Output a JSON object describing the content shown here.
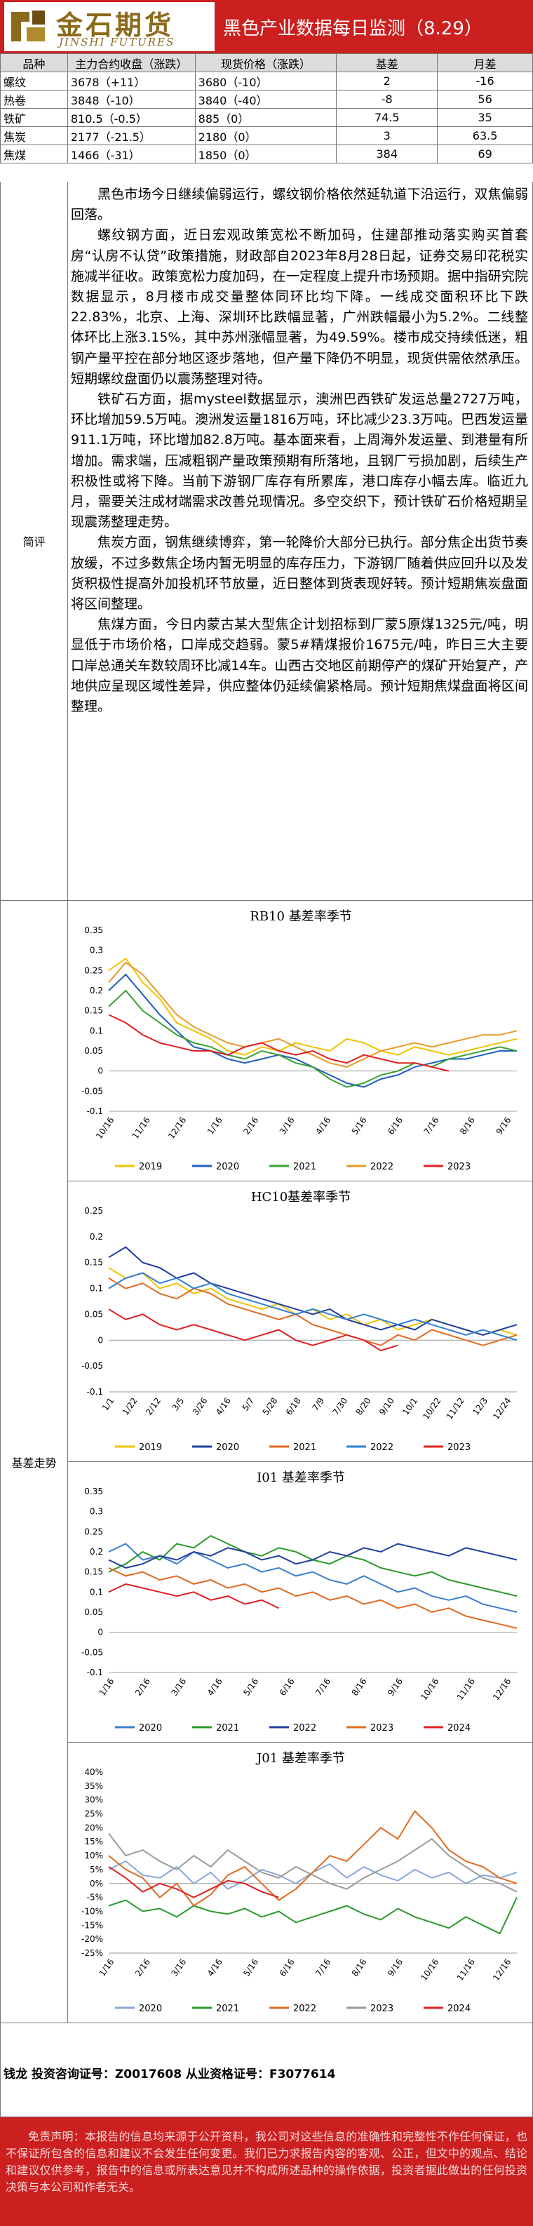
{
  "header": {
    "logo_cn": "金石期货",
    "logo_en": "JINSHI FUTURES",
    "title": "黑色产业数据每日监测（8.29）"
  },
  "summary": {
    "headers": [
      "品种",
      "主力合约收盘（涨跌）",
      "现货价格（涨跌）",
      "基差",
      "月差"
    ],
    "rows": [
      [
        "螺纹",
        "3678（+11）",
        "3680（-10）",
        "2",
        "-16"
      ],
      [
        "热卷",
        "3848（-10）",
        "3840（-40）",
        "-8",
        "56"
      ],
      [
        "铁矿",
        "810.5（-0.5）",
        "885（0）",
        "74.5",
        "35"
      ],
      [
        "焦炭",
        "2177（-21.5）",
        "2180（0）",
        "3",
        "63.5"
      ],
      [
        "焦煤",
        "1466（-31）",
        "1850（0）",
        "384",
        "69"
      ]
    ]
  },
  "commentary": {
    "label": "简评",
    "paragraphs": [
      "黑色市场今日继续偏弱运行，螺纹钢价格依然延轨道下沿运行，双焦偏弱回落。",
      "螺纹钢方面，近日宏观政策宽松不断加码，住建部推动落实购买首套房“认房不认贷”政策措施，财政部自2023年8月28日起，证券交易印花税实施减半征收。政策宽松力度加码，在一定程度上提升市场预期。据中指研究院数据显示，8月楼市成交量整体同环比均下降。一线成交面积环比下跌22.83%，北京、上海、深圳环比跌幅显著，广州跌幅最小为5.2%。二线整体环比上涨3.15%，其中苏州涨幅显著，为49.59%。楼市成交持续低迷，粗钢产量平控在部分地区逐步落地，但产量下降仍不明显，现货供需依然承压。短期螺纹盘面仍以震荡整理对待。",
      "铁矿石方面，据mysteel数据显示，澳洲巴西铁矿发运总量2727万吨，环比增加59.5万吨。澳洲发运量1816万吨，环比减少23.3万吨。巴西发运量911.1万吨，环比增加82.8万吨。基本面来看，上周海外发运量、到港量有所增加。需求端，压减粗钢产量政策预期有所落地，且钢厂亏损加剧，后续生产积极性或将下降。当前下游钢厂库存有所累库，港口库存小幅去库。临近九月，需要关注成材端需求改善兑现情况。多空交织下，预计铁矿石价格短期呈现震荡整理走势。",
      "焦炭方面，钢焦继续博弈，第一轮降价大部分已执行。部分焦企出货节奏放缓，不过多数焦企场内暂无明显的库存压力，下游钢厂随着供应回升以及发货积极性提高外加投机环节放量，近日整体到货表现好转。预计短期焦炭盘面将区间整理。",
      "焦煤方面，今日内蒙古某大型焦企计划招标到厂蒙5原煤1325元/吨，明显低于市场价格，口岸成交趋弱。蒙5#精煤报价1675元/吨，昨日三大主要口岸总通关车数较周环比减14车。山西古交地区前期停产的煤矿开始复产，产地供应呈现区域性差异，供应整体仍延续偏紧格局。预计短期焦煤盘面将区间整理。"
    ]
  },
  "basis": {
    "label": "基差走势"
  },
  "chart_data": [
    {
      "type": "line",
      "title": "RB10 基差率季节",
      "x_ticks": [
        "10/16",
        "11/16",
        "12/16",
        "1/16",
        "2/16",
        "3/16",
        "4/16",
        "5/16",
        "6/16",
        "7/16",
        "8/16",
        "9/16"
      ],
      "ylim": [
        -0.1,
        0.35
      ],
      "y_ticks": [
        "0.35",
        "0.3",
        "0.25",
        "0.2",
        "0.15",
        "0.1",
        "0.05",
        "0",
        "-0.05",
        "-0.1"
      ],
      "series": [
        {
          "name": "2019",
          "color": "#f2c200",
          "values": [
            0.25,
            0.28,
            0.22,
            0.18,
            0.12,
            0.1,
            0.08,
            0.05,
            0.04,
            0.06,
            0.05,
            0.07,
            0.06,
            0.05,
            0.08,
            0.07,
            0.05,
            0.04,
            0.06,
            0.05,
            0.04,
            0.05,
            0.06,
            0.07,
            0.08
          ]
        },
        {
          "name": "2020",
          "color": "#1f5fbf",
          "values": [
            0.2,
            0.24,
            0.19,
            0.14,
            0.1,
            0.06,
            0.05,
            0.03,
            0.02,
            0.03,
            0.04,
            0.03,
            0.01,
            -0.01,
            -0.03,
            -0.04,
            -0.02,
            -0.01,
            0.01,
            0.02,
            0.03,
            0.03,
            0.04,
            0.05,
            0.05
          ]
        },
        {
          "name": "2021",
          "color": "#3aa034",
          "values": [
            0.16,
            0.2,
            0.15,
            0.12,
            0.09,
            0.07,
            0.06,
            0.04,
            0.03,
            0.05,
            0.04,
            0.02,
            0.01,
            -0.02,
            -0.04,
            -0.03,
            -0.01,
            0.0,
            0.02,
            0.01,
            0.03,
            0.04,
            0.05,
            0.06,
            0.05
          ]
        },
        {
          "name": "2022",
          "color": "#e89b2a",
          "values": [
            0.22,
            0.27,
            0.24,
            0.19,
            0.14,
            0.11,
            0.09,
            0.07,
            0.06,
            0.07,
            0.08,
            0.06,
            0.04,
            0.02,
            0.01,
            0.03,
            0.05,
            0.06,
            0.07,
            0.06,
            0.07,
            0.08,
            0.09,
            0.09,
            0.1
          ]
        },
        {
          "name": "2023",
          "color": "#e02020",
          "values": [
            0.14,
            0.12,
            0.09,
            0.07,
            0.06,
            0.05,
            0.05,
            0.04,
            0.06,
            0.07,
            0.05,
            0.04,
            0.05,
            0.03,
            0.02,
            0.04,
            0.03,
            0.02,
            0.02,
            0.01,
            0.0,
            null,
            null,
            null,
            null
          ]
        }
      ]
    },
    {
      "type": "line",
      "title": "HC10基差率季节",
      "x_ticks": [
        "1/1",
        "1/22",
        "2/12",
        "3/5",
        "3/26",
        "4/16",
        "5/7",
        "5/28",
        "6/18",
        "7/9",
        "7/30",
        "8/20",
        "9/10",
        "10/1",
        "10/22",
        "11/12",
        "12/3",
        "12/24"
      ],
      "ylim": [
        -0.1,
        0.25
      ],
      "y_ticks": [
        "0.25",
        "0.2",
        "0.15",
        "0.1",
        "0.05",
        "0",
        "-0.05",
        "-0.1"
      ],
      "series": [
        {
          "name": "2019",
          "color": "#f2c200",
          "values": [
            0.14,
            0.12,
            0.13,
            0.1,
            0.11,
            0.09,
            0.1,
            0.08,
            0.07,
            0.06,
            0.07,
            0.05,
            0.06,
            0.04,
            0.05,
            0.03,
            0.04,
            0.02,
            0.03,
            0.04,
            0.03,
            0.02,
            0.01,
            0.02,
            0.01
          ]
        },
        {
          "name": "2020",
          "color": "#1f3f9f",
          "values": [
            0.16,
            0.18,
            0.15,
            0.14,
            0.12,
            0.13,
            0.11,
            0.1,
            0.09,
            0.08,
            0.07,
            0.06,
            0.05,
            0.06,
            0.04,
            0.03,
            0.02,
            0.03,
            0.02,
            0.04,
            0.03,
            0.02,
            0.01,
            0.02,
            0.03
          ]
        },
        {
          "name": "2021",
          "color": "#e06a20",
          "values": [
            0.12,
            0.1,
            0.11,
            0.09,
            0.08,
            0.1,
            0.09,
            0.07,
            0.06,
            0.05,
            0.04,
            0.05,
            0.03,
            0.02,
            0.01,
            0.0,
            -0.01,
            0.01,
            0.0,
            0.02,
            0.01,
            0.0,
            -0.01,
            0.0,
            0.01
          ]
        },
        {
          "name": "2022",
          "color": "#2f7fd0",
          "values": [
            0.1,
            0.12,
            0.13,
            0.11,
            0.12,
            0.1,
            0.11,
            0.09,
            0.08,
            0.07,
            0.06,
            0.05,
            0.06,
            0.05,
            0.04,
            0.05,
            0.04,
            0.03,
            0.04,
            0.03,
            0.02,
            0.01,
            0.02,
            0.01,
            0.0
          ]
        },
        {
          "name": "2023",
          "color": "#e02020",
          "values": [
            0.06,
            0.04,
            0.05,
            0.03,
            0.02,
            0.03,
            0.02,
            0.01,
            0.0,
            0.01,
            0.02,
            0.0,
            -0.01,
            0.0,
            0.01,
            0.0,
            -0.02,
            -0.01,
            null,
            null,
            null,
            null,
            null,
            null,
            null
          ]
        }
      ]
    },
    {
      "type": "line",
      "title": "I01 基差率季节",
      "x_ticks": [
        "1/16",
        "2/16",
        "3/16",
        "4/16",
        "5/16",
        "6/16",
        "7/16",
        "8/16",
        "9/16",
        "10/16",
        "11/16",
        "12/16"
      ],
      "ylim": [
        -0.1,
        0.35
      ],
      "y_ticks": [
        "0.35",
        "0.3",
        "0.25",
        "0.2",
        "0.15",
        "0.1",
        "0.05",
        "0",
        "-0.05",
        "-0.1"
      ],
      "series": [
        {
          "name": "2020",
          "color": "#3a7fd0",
          "values": [
            0.2,
            0.22,
            0.18,
            0.19,
            0.17,
            0.2,
            0.18,
            0.16,
            0.17,
            0.15,
            0.16,
            0.14,
            0.15,
            0.13,
            0.12,
            0.14,
            0.12,
            0.1,
            0.11,
            0.09,
            0.08,
            0.09,
            0.07,
            0.06,
            0.05
          ]
        },
        {
          "name": "2021",
          "color": "#2a9a2a",
          "values": [
            0.15,
            0.17,
            0.2,
            0.18,
            0.22,
            0.21,
            0.24,
            0.22,
            0.2,
            0.19,
            0.21,
            0.2,
            0.18,
            0.17,
            0.19,
            0.18,
            0.16,
            0.15,
            0.14,
            0.15,
            0.13,
            0.12,
            0.11,
            0.1,
            0.09
          ]
        },
        {
          "name": "2022",
          "color": "#1f3f9f",
          "values": [
            0.18,
            0.16,
            0.17,
            0.19,
            0.18,
            0.2,
            0.19,
            0.21,
            0.2,
            0.18,
            0.19,
            0.17,
            0.18,
            0.2,
            0.19,
            0.21,
            0.2,
            0.22,
            0.21,
            0.2,
            0.19,
            0.21,
            0.2,
            0.19,
            0.18
          ]
        },
        {
          "name": "2023",
          "color": "#e06a20",
          "values": [
            0.16,
            0.14,
            0.15,
            0.13,
            0.14,
            0.12,
            0.13,
            0.11,
            0.12,
            0.1,
            0.11,
            0.09,
            0.1,
            0.08,
            0.09,
            0.07,
            0.08,
            0.06,
            0.07,
            0.05,
            0.06,
            0.04,
            0.03,
            0.02,
            0.01
          ]
        },
        {
          "name": "2024",
          "color": "#e02020",
          "values": [
            0.1,
            0.12,
            0.11,
            0.1,
            0.09,
            0.1,
            0.08,
            0.09,
            0.07,
            0.08,
            0.06,
            null,
            null,
            null,
            null,
            null,
            null,
            null,
            null,
            null,
            null,
            null,
            null,
            null,
            null
          ]
        }
      ]
    },
    {
      "type": "line",
      "title": "J01 基差率季节",
      "x_ticks": [
        "1/16",
        "2/16",
        "3/16",
        "4/16",
        "5/16",
        "6/16",
        "7/16",
        "8/16",
        "9/16",
        "10/16",
        "11/16",
        "12/16"
      ],
      "ylim": [
        -0.25,
        0.4
      ],
      "y_ticks": [
        "40%",
        "35%",
        "30%",
        "25%",
        "20%",
        "15%",
        "10%",
        "5%",
        "0%",
        "-5%",
        "-10%",
        "-15%",
        "-20%",
        "-25%"
      ],
      "series": [
        {
          "name": "2020",
          "color": "#8aa6d8",
          "values": [
            0.05,
            0.08,
            0.03,
            0.02,
            0.06,
            0.0,
            0.04,
            -0.02,
            0.01,
            0.05,
            0.03,
            0.0,
            0.04,
            0.07,
            0.02,
            0.06,
            0.03,
            0.01,
            0.05,
            0.02,
            0.04,
            0.0,
            0.03,
            0.02,
            0.04
          ]
        },
        {
          "name": "2021",
          "color": "#2a9a2a",
          "values": [
            -0.08,
            -0.06,
            -0.1,
            -0.09,
            -0.12,
            -0.08,
            -0.1,
            -0.11,
            -0.09,
            -0.12,
            -0.1,
            -0.14,
            -0.12,
            -0.1,
            -0.08,
            -0.11,
            -0.13,
            -0.09,
            -0.12,
            -0.14,
            -0.16,
            -0.12,
            -0.15,
            -0.18,
            -0.05
          ]
        },
        {
          "name": "2022",
          "color": "#e06a20",
          "values": [
            0.1,
            0.05,
            0.02,
            -0.05,
            0.0,
            -0.08,
            -0.04,
            0.03,
            0.06,
            0.0,
            -0.06,
            -0.02,
            0.04,
            0.1,
            0.08,
            0.14,
            0.2,
            0.16,
            0.26,
            0.2,
            0.12,
            0.08,
            0.06,
            0.02,
            0.0
          ]
        },
        {
          "name": "2023",
          "color": "#9a9a9a",
          "values": [
            0.18,
            0.1,
            0.12,
            0.08,
            0.05,
            0.1,
            0.06,
            0.12,
            0.08,
            0.04,
            0.02,
            0.06,
            0.03,
            0.0,
            -0.02,
            0.02,
            0.05,
            0.08,
            0.12,
            0.16,
            0.1,
            0.06,
            0.02,
            0.0,
            -0.03
          ]
        },
        {
          "name": "2024",
          "color": "#e02020",
          "values": [
            0.06,
            0.02,
            -0.03,
            0.0,
            -0.02,
            -0.05,
            -0.02,
            0.01,
            0.0,
            -0.03,
            -0.05,
            null,
            null,
            null,
            null,
            null,
            null,
            null,
            null,
            null,
            null,
            null,
            null,
            null,
            null
          ]
        }
      ]
    }
  ],
  "footer": {
    "license": "钱龙 投资咨询证号：Z0017608 从业资格证号：F3077614",
    "disclaimer": "免责声明：本报告的信息均来源于公开资料，我公司对这些信息的准确性和完整性不作任何保证，也不保证所包含的信息和建议不会发生任何变更。我们已力求报告内容的客观、公正，但文中的观点、结论和建议仅供参考，报告中的信息或所表达意见并不构成所述品种的操作依据，投资者据此做出的任何投资决策与本公司和作者无关。"
  }
}
